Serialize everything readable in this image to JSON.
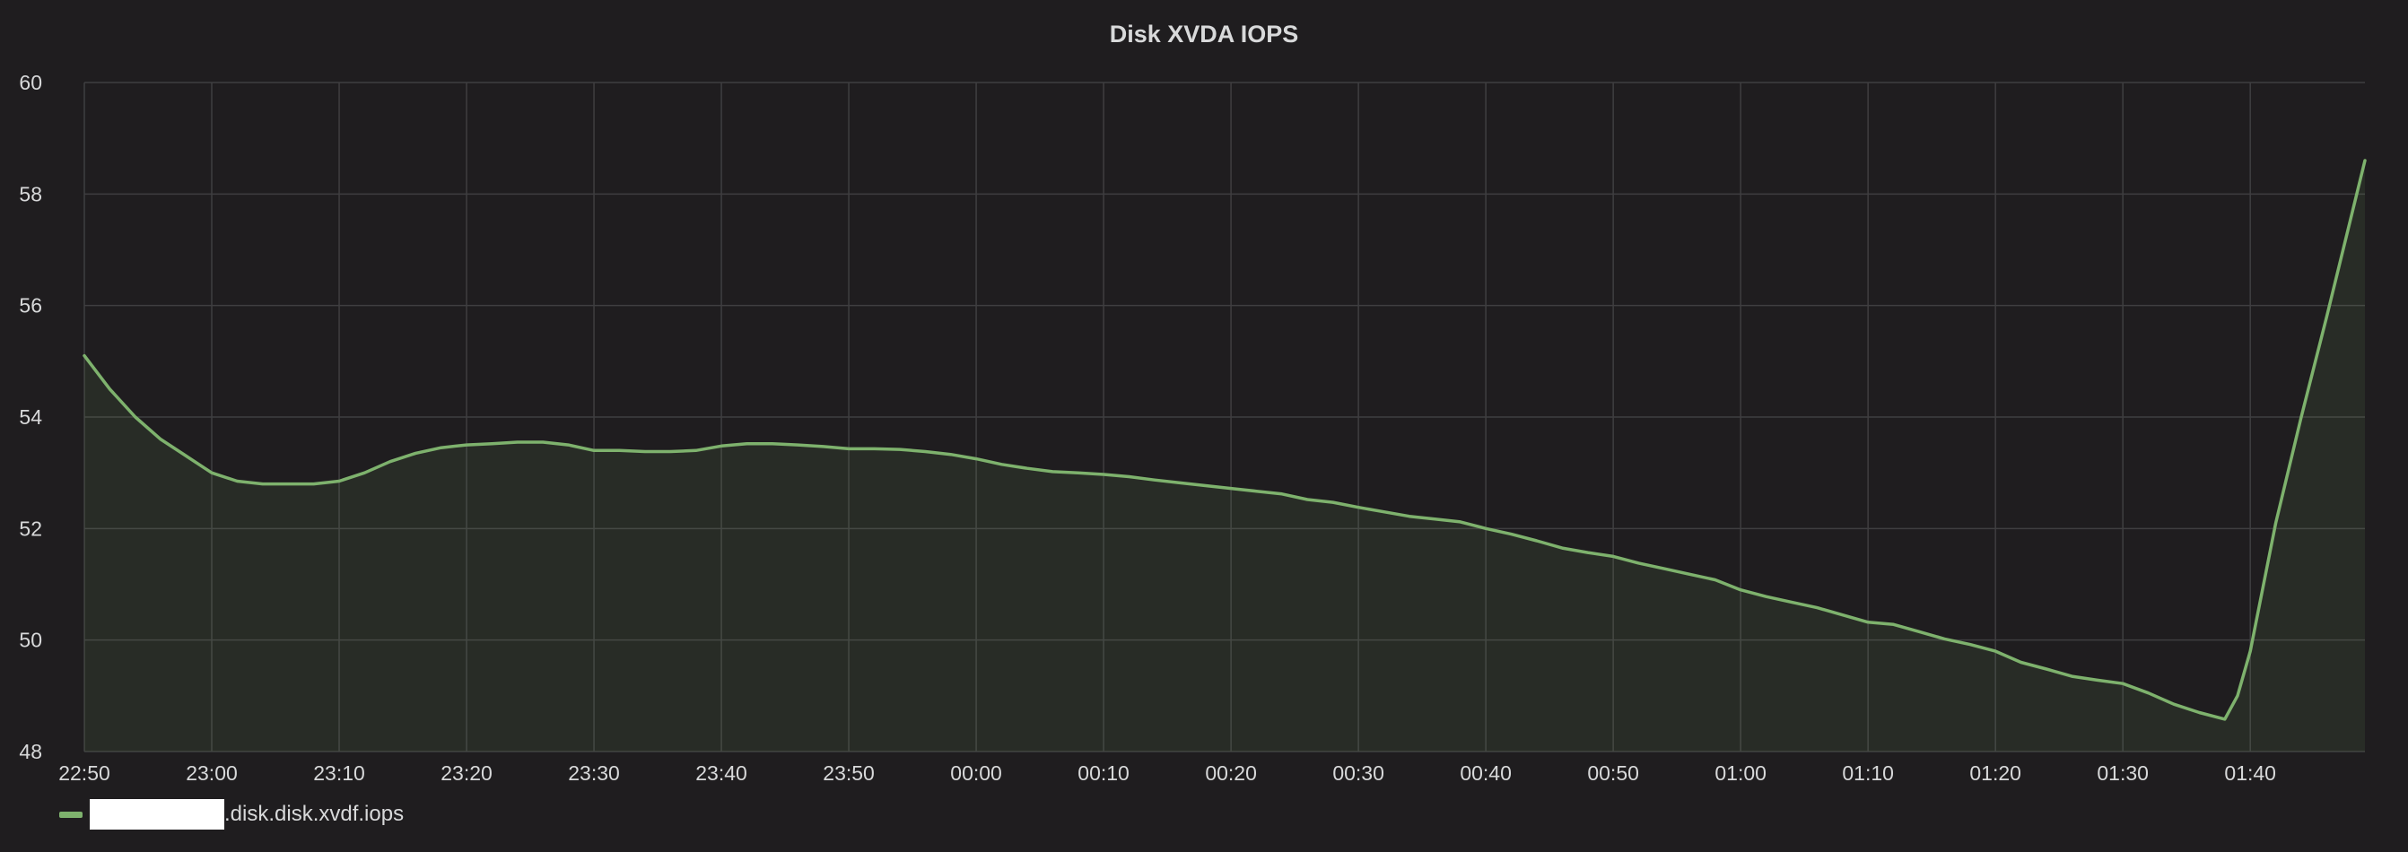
{
  "chart_data": {
    "type": "area",
    "title": "Disk XVDA IOPS",
    "xlabel": "",
    "ylabel": "",
    "ylim": [
      48,
      60
    ],
    "y_ticks": [
      "48",
      "50",
      "52",
      "54",
      "56",
      "58",
      "60"
    ],
    "x_range": [
      "22:50",
      "01:49"
    ],
    "x_ticks": [
      "22:50",
      "23:00",
      "23:10",
      "23:20",
      "23:30",
      "23:40",
      "23:50",
      "00:00",
      "00:10",
      "00:20",
      "00:30",
      "00:40",
      "00:50",
      "01:00",
      "01:10",
      "01:20",
      "01:30",
      "01:40"
    ],
    "grid": true,
    "legend_position": "bottom-left",
    "series": [
      {
        "name": ".disk.disk.xvdf.iops",
        "color": "#7eb26d",
        "points": [
          [
            "22:50",
            55.1
          ],
          [
            "22:52",
            54.5
          ],
          [
            "22:54",
            54.0
          ],
          [
            "22:56",
            53.6
          ],
          [
            "22:58",
            53.3
          ],
          [
            "23:00",
            53.0
          ],
          [
            "23:02",
            52.85
          ],
          [
            "23:04",
            52.8
          ],
          [
            "23:06",
            52.8
          ],
          [
            "23:08",
            52.8
          ],
          [
            "23:10",
            52.85
          ],
          [
            "23:12",
            53.0
          ],
          [
            "23:14",
            53.2
          ],
          [
            "23:16",
            53.35
          ],
          [
            "23:18",
            53.45
          ],
          [
            "23:20",
            53.5
          ],
          [
            "23:22",
            53.52
          ],
          [
            "23:24",
            53.55
          ],
          [
            "23:26",
            53.55
          ],
          [
            "23:28",
            53.5
          ],
          [
            "23:30",
            53.4
          ],
          [
            "23:32",
            53.4
          ],
          [
            "23:34",
            53.38
          ],
          [
            "23:36",
            53.38
          ],
          [
            "23:38",
            53.4
          ],
          [
            "23:40",
            53.48
          ],
          [
            "23:42",
            53.52
          ],
          [
            "23:44",
            53.52
          ],
          [
            "23:46",
            53.5
          ],
          [
            "23:48",
            53.47
          ],
          [
            "23:50",
            53.43
          ],
          [
            "23:52",
            53.43
          ],
          [
            "23:54",
            53.42
          ],
          [
            "23:56",
            53.38
          ],
          [
            "23:58",
            53.33
          ],
          [
            "00:00",
            53.25
          ],
          [
            "00:02",
            53.15
          ],
          [
            "00:04",
            53.08
          ],
          [
            "00:06",
            53.02
          ],
          [
            "00:08",
            53.0
          ],
          [
            "00:10",
            52.97
          ],
          [
            "00:12",
            52.93
          ],
          [
            "00:14",
            52.87
          ],
          [
            "00:16",
            52.82
          ],
          [
            "00:18",
            52.77
          ],
          [
            "00:20",
            52.72
          ],
          [
            "00:22",
            52.67
          ],
          [
            "00:24",
            52.62
          ],
          [
            "00:26",
            52.52
          ],
          [
            "00:28",
            52.47
          ],
          [
            "00:30",
            52.38
          ],
          [
            "00:32",
            52.3
          ],
          [
            "00:34",
            52.22
          ],
          [
            "00:36",
            52.17
          ],
          [
            "00:38",
            52.12
          ],
          [
            "00:40",
            52.0
          ],
          [
            "00:42",
            51.9
          ],
          [
            "00:44",
            51.78
          ],
          [
            "00:46",
            51.65
          ],
          [
            "00:48",
            51.57
          ],
          [
            "00:50",
            51.5
          ],
          [
            "00:52",
            51.38
          ],
          [
            "00:54",
            51.28
          ],
          [
            "00:56",
            51.18
          ],
          [
            "00:58",
            51.08
          ],
          [
            "01:00",
            50.9
          ],
          [
            "01:02",
            50.78
          ],
          [
            "01:04",
            50.68
          ],
          [
            "01:06",
            50.58
          ],
          [
            "01:08",
            50.45
          ],
          [
            "01:10",
            50.32
          ],
          [
            "01:12",
            50.28
          ],
          [
            "01:14",
            50.15
          ],
          [
            "01:16",
            50.02
          ],
          [
            "01:18",
            49.92
          ],
          [
            "01:20",
            49.8
          ],
          [
            "01:22",
            49.6
          ],
          [
            "01:24",
            49.48
          ],
          [
            "01:26",
            49.35
          ],
          [
            "01:28",
            49.28
          ],
          [
            "01:30",
            49.22
          ],
          [
            "01:32",
            49.05
          ],
          [
            "01:34",
            48.85
          ],
          [
            "01:36",
            48.7
          ],
          [
            "01:38",
            48.58
          ],
          [
            "01:39",
            49.0
          ],
          [
            "01:40",
            49.8
          ],
          [
            "01:42",
            52.1
          ],
          [
            "01:44",
            54.0
          ],
          [
            "01:46",
            55.8
          ],
          [
            "01:49",
            58.6
          ]
        ]
      }
    ]
  }
}
